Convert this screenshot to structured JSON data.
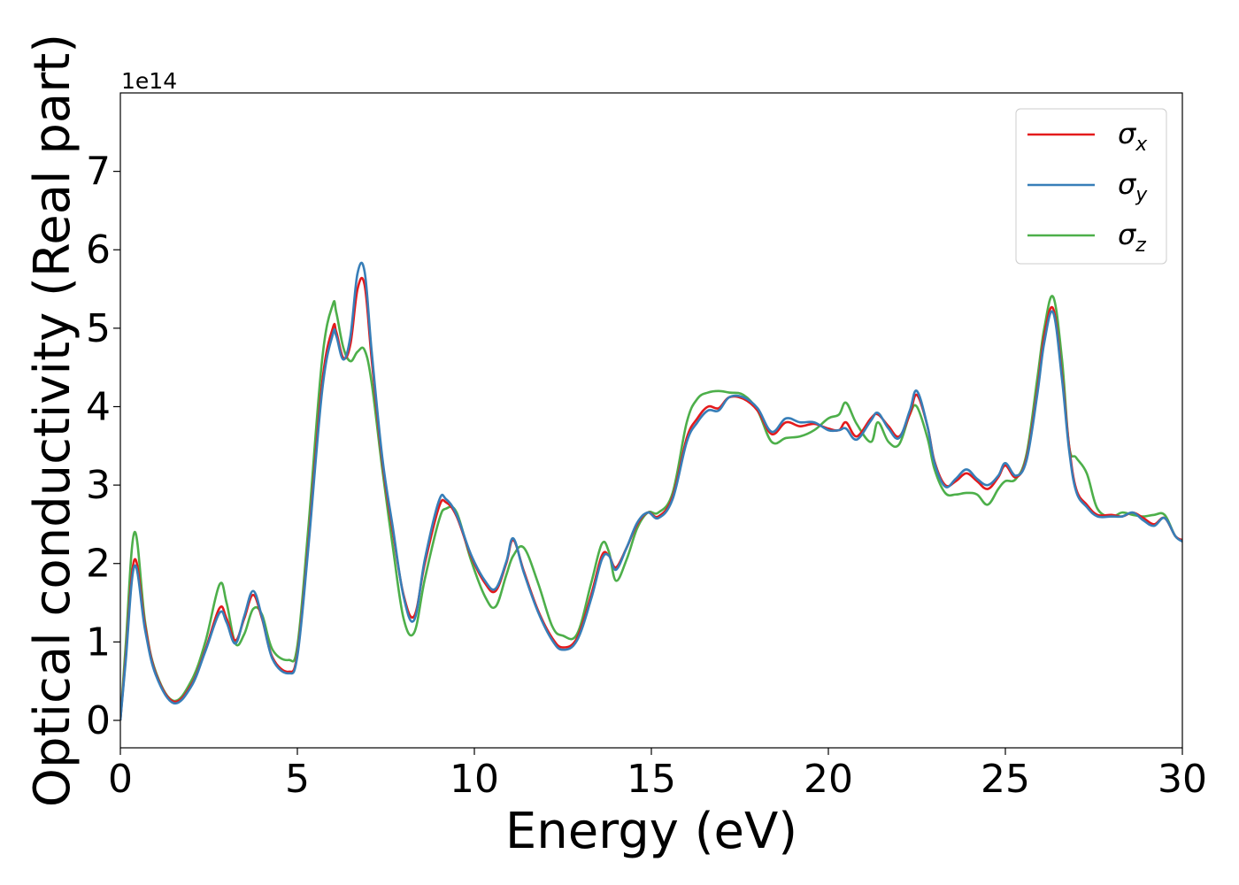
{
  "chart_data": {
    "type": "line",
    "title": "",
    "xlabel": "Energy (eV)",
    "ylabel": "Optical conductivity (Real part)",
    "y_offset_label": "1e14",
    "y_scale_factor": 100000000000000.0,
    "xlim": [
      0,
      30
    ],
    "ylim": [
      -0.35,
      8.0
    ],
    "xticks": [
      0,
      5,
      10,
      15,
      20,
      25,
      30
    ],
    "xtick_labels": [
      "0",
      "5",
      "10",
      "15",
      "20",
      "25",
      "30"
    ],
    "yticks": [
      0,
      1,
      2,
      3,
      4,
      5,
      6,
      7
    ],
    "ytick_labels": [
      "0",
      "1",
      "2",
      "3",
      "4",
      "5",
      "6",
      "7"
    ],
    "grid": false,
    "legend_position": "top-right",
    "series": [
      {
        "name": "σx",
        "legend_base": "σ",
        "legend_sub": "x",
        "color": "#e41a1c",
        "x": [
          0,
          0.15,
          0.4,
          0.7,
          1.0,
          1.5,
          2.0,
          2.4,
          2.8,
          3.0,
          3.25,
          3.5,
          3.75,
          4.0,
          4.3,
          4.75,
          5.0,
          5.3,
          5.7,
          6.0,
          6.1,
          6.3,
          6.5,
          6.7,
          6.9,
          7.1,
          7.4,
          7.7,
          8.0,
          8.3,
          8.6,
          9.0,
          9.2,
          9.5,
          9.9,
          10.3,
          10.6,
          10.9,
          11.1,
          11.4,
          11.8,
          12.2,
          12.5,
          12.9,
          13.3,
          13.6,
          13.8,
          14.0,
          14.3,
          14.6,
          14.9,
          15.2,
          15.6,
          16.0,
          16.3,
          16.6,
          16.9,
          17.2,
          17.6,
          18.0,
          18.4,
          18.8,
          19.2,
          19.6,
          20.0,
          20.3,
          20.5,
          20.8,
          21.2,
          21.4,
          21.7,
          22.0,
          22.3,
          22.5,
          22.8,
          23.0,
          23.3,
          23.6,
          23.9,
          24.2,
          24.5,
          24.8,
          25.0,
          25.3,
          25.6,
          25.9,
          26.1,
          26.35,
          26.6,
          26.8,
          27.0,
          27.3,
          27.6,
          28.0,
          28.3,
          28.6,
          28.9,
          29.2,
          29.5,
          29.8,
          30
        ],
        "y": [
          0,
          0.8,
          2.05,
          1.2,
          0.6,
          0.24,
          0.45,
          0.9,
          1.43,
          1.3,
          1.02,
          1.3,
          1.6,
          1.3,
          0.8,
          0.62,
          0.85,
          2.2,
          4.3,
          5.0,
          4.95,
          4.62,
          4.8,
          5.5,
          5.55,
          4.6,
          3.3,
          2.4,
          1.6,
          1.33,
          2.0,
          2.72,
          2.78,
          2.6,
          2.1,
          1.75,
          1.65,
          2.0,
          2.3,
          1.9,
          1.4,
          1.05,
          0.93,
          1.05,
          1.6,
          2.1,
          2.1,
          1.95,
          2.2,
          2.5,
          2.65,
          2.6,
          2.85,
          3.6,
          3.85,
          4.0,
          3.98,
          4.12,
          4.1,
          3.95,
          3.65,
          3.8,
          3.75,
          3.78,
          3.72,
          3.7,
          3.8,
          3.62,
          3.85,
          3.9,
          3.75,
          3.62,
          3.9,
          4.15,
          3.75,
          3.3,
          3.0,
          3.05,
          3.15,
          3.05,
          2.95,
          3.1,
          3.25,
          3.1,
          3.35,
          4.2,
          4.9,
          5.25,
          4.4,
          3.5,
          2.95,
          2.75,
          2.62,
          2.62,
          2.6,
          2.65,
          2.58,
          2.5,
          2.58,
          2.35,
          2.3
        ]
      },
      {
        "name": "σy",
        "legend_base": "σ",
        "legend_sub": "y",
        "color": "#377eb8",
        "x": [
          0,
          0.15,
          0.4,
          0.7,
          1.0,
          1.5,
          2.0,
          2.4,
          2.8,
          3.0,
          3.25,
          3.5,
          3.75,
          4.0,
          4.3,
          4.75,
          5.0,
          5.3,
          5.7,
          6.0,
          6.1,
          6.3,
          6.5,
          6.7,
          6.9,
          7.1,
          7.4,
          7.7,
          8.0,
          8.3,
          8.6,
          9.0,
          9.2,
          9.5,
          9.9,
          10.3,
          10.6,
          10.9,
          11.1,
          11.4,
          11.8,
          12.2,
          12.5,
          12.9,
          13.3,
          13.6,
          13.8,
          14.0,
          14.3,
          14.6,
          14.9,
          15.2,
          15.6,
          16.0,
          16.3,
          16.6,
          16.9,
          17.2,
          17.6,
          18.0,
          18.4,
          18.8,
          19.2,
          19.6,
          20.0,
          20.3,
          20.5,
          20.8,
          21.2,
          21.4,
          21.7,
          22.0,
          22.3,
          22.5,
          22.8,
          23.0,
          23.3,
          23.6,
          23.9,
          24.2,
          24.5,
          24.8,
          25.0,
          25.3,
          25.6,
          25.9,
          26.1,
          26.35,
          26.6,
          26.8,
          27.0,
          27.3,
          27.6,
          28.0,
          28.3,
          28.6,
          28.9,
          29.2,
          29.5,
          29.8,
          30
        ],
        "y": [
          0,
          0.75,
          1.97,
          1.15,
          0.58,
          0.22,
          0.43,
          0.88,
          1.37,
          1.25,
          0.98,
          1.33,
          1.65,
          1.32,
          0.78,
          0.6,
          0.82,
          2.15,
          4.2,
          4.92,
          4.9,
          4.6,
          4.9,
          5.7,
          5.72,
          4.7,
          3.35,
          2.45,
          1.58,
          1.28,
          2.05,
          2.8,
          2.82,
          2.62,
          2.12,
          1.78,
          1.68,
          2.02,
          2.32,
          1.88,
          1.38,
          1.02,
          0.9,
          1.02,
          1.55,
          2.05,
          2.1,
          1.92,
          2.2,
          2.52,
          2.65,
          2.58,
          2.82,
          3.55,
          3.8,
          3.95,
          3.95,
          4.12,
          4.12,
          3.98,
          3.68,
          3.85,
          3.8,
          3.8,
          3.7,
          3.7,
          3.72,
          3.58,
          3.82,
          3.92,
          3.72,
          3.6,
          3.95,
          4.2,
          3.75,
          3.28,
          2.98,
          3.08,
          3.2,
          3.08,
          3.0,
          3.12,
          3.28,
          3.12,
          3.32,
          4.15,
          4.82,
          5.2,
          4.35,
          3.45,
          2.92,
          2.72,
          2.6,
          2.6,
          2.6,
          2.65,
          2.55,
          2.48,
          2.58,
          2.35,
          2.28
        ]
      },
      {
        "name": "σz",
        "legend_base": "σ",
        "legend_sub": "z",
        "color": "#4daf4a",
        "x": [
          0,
          0.15,
          0.4,
          0.7,
          1.0,
          1.5,
          2.0,
          2.4,
          2.8,
          3.0,
          3.25,
          3.5,
          3.75,
          4.0,
          4.3,
          4.75,
          5.0,
          5.3,
          5.7,
          6.0,
          6.1,
          6.3,
          6.5,
          6.7,
          6.9,
          7.1,
          7.4,
          7.7,
          8.0,
          8.3,
          8.6,
          9.0,
          9.2,
          9.5,
          9.9,
          10.3,
          10.6,
          10.9,
          11.1,
          11.4,
          11.8,
          12.2,
          12.5,
          12.9,
          13.3,
          13.6,
          13.8,
          14.0,
          14.3,
          14.6,
          14.9,
          15.2,
          15.6,
          16.0,
          16.3,
          16.6,
          16.9,
          17.2,
          17.6,
          18.0,
          18.4,
          18.8,
          19.2,
          19.6,
          20.0,
          20.3,
          20.5,
          20.8,
          21.2,
          21.4,
          21.7,
          22.0,
          22.3,
          22.5,
          22.8,
          23.0,
          23.3,
          23.6,
          23.9,
          24.2,
          24.5,
          24.8,
          25.0,
          25.3,
          25.6,
          25.9,
          26.1,
          26.35,
          26.6,
          26.8,
          27.0,
          27.3,
          27.6,
          28.0,
          28.3,
          28.6,
          28.9,
          29.2,
          29.5,
          29.8,
          30
        ],
        "y": [
          0,
          0.95,
          2.4,
          1.25,
          0.62,
          0.25,
          0.5,
          1.0,
          1.73,
          1.5,
          0.98,
          1.1,
          1.42,
          1.35,
          0.9,
          0.77,
          0.95,
          2.4,
          4.6,
          5.3,
          5.2,
          4.75,
          4.58,
          4.7,
          4.72,
          4.3,
          3.2,
          2.2,
          1.3,
          1.12,
          1.8,
          2.55,
          2.7,
          2.65,
          2.05,
          1.58,
          1.45,
          1.85,
          2.1,
          2.2,
          1.75,
          1.2,
          1.08,
          1.1,
          1.75,
          2.25,
          2.15,
          1.78,
          2.05,
          2.45,
          2.65,
          2.65,
          2.9,
          3.8,
          4.1,
          4.18,
          4.2,
          4.18,
          4.15,
          3.95,
          3.55,
          3.6,
          3.62,
          3.7,
          3.85,
          3.9,
          4.05,
          3.78,
          3.55,
          3.8,
          3.55,
          3.52,
          3.9,
          4.0,
          3.6,
          3.2,
          2.9,
          2.88,
          2.9,
          2.88,
          2.75,
          2.95,
          3.05,
          3.08,
          3.4,
          4.35,
          5.0,
          5.4,
          4.6,
          3.5,
          3.35,
          3.15,
          2.7,
          2.6,
          2.65,
          2.62,
          2.6,
          2.62,
          2.62,
          2.35,
          2.3
        ]
      }
    ]
  }
}
